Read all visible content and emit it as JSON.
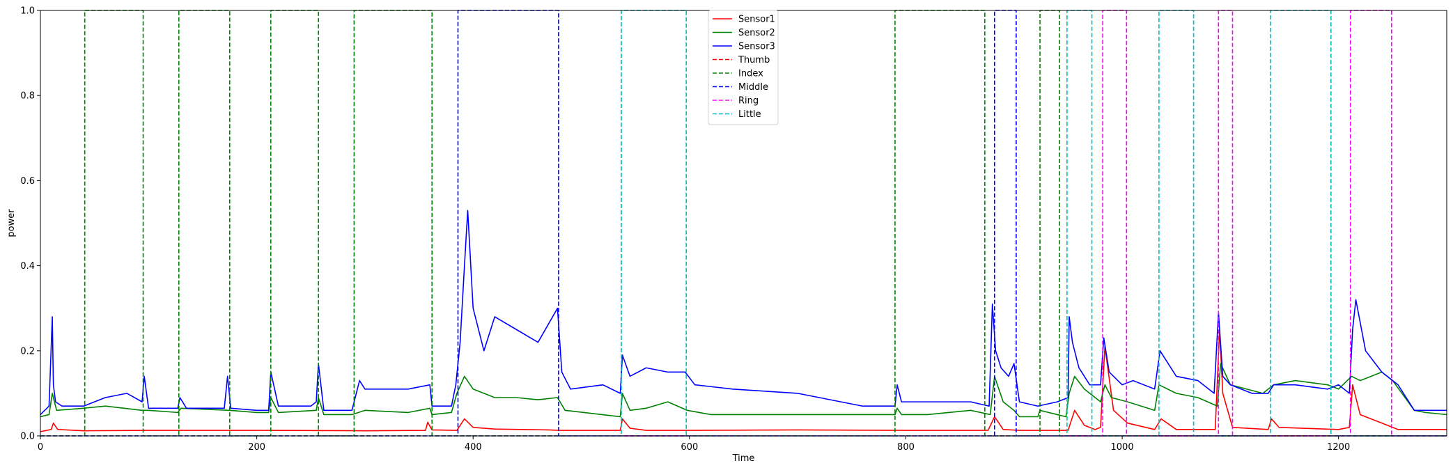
{
  "chart_data": {
    "type": "line",
    "title": "",
    "xlabel": "Time",
    "ylabel": "power",
    "xlim": [
      0,
      1300
    ],
    "ylim": [
      0,
      1.0
    ],
    "xticks": [
      0,
      200,
      400,
      600,
      800,
      1000,
      1200
    ],
    "xtick_labels": [
      "0",
      "200",
      "400",
      "600",
      "800",
      "1000",
      "1200"
    ],
    "yticks": [
      0.0,
      0.2,
      0.4,
      0.6,
      0.8,
      1.0
    ],
    "ytick_labels": [
      "0.0",
      "0.2",
      "0.4",
      "0.6",
      "0.8",
      "1.0"
    ],
    "grid": false,
    "legend_position": "top-center",
    "series": [
      {
        "name": "Sensor1",
        "style": "solid",
        "color": "#ff0000",
        "x": [
          0,
          10,
          12,
          16,
          40,
          100,
          200,
          300,
          356,
          358,
          362,
          385,
          392,
          400,
          420,
          470,
          480,
          536,
          538,
          545,
          560,
          600,
          700,
          800,
          876,
          882,
          890,
          905,
          940,
          950,
          956,
          965,
          975,
          980,
          984,
          992,
          1005,
          1030,
          1036,
          1050,
          1086,
          1090,
          1093,
          1102,
          1135,
          1138,
          1145,
          1200,
          1210,
          1213,
          1220,
          1240,
          1250,
          1255,
          1300
        ],
        "y": [
          0.01,
          0.015,
          0.03,
          0.015,
          0.012,
          0.013,
          0.013,
          0.012,
          0.013,
          0.032,
          0.014,
          0.013,
          0.04,
          0.02,
          0.016,
          0.014,
          0.013,
          0.013,
          0.04,
          0.018,
          0.013,
          0.013,
          0.014,
          0.013,
          0.013,
          0.045,
          0.015,
          0.013,
          0.013,
          0.013,
          0.06,
          0.025,
          0.015,
          0.02,
          0.21,
          0.06,
          0.03,
          0.015,
          0.04,
          0.015,
          0.015,
          0.25,
          0.1,
          0.02,
          0.015,
          0.04,
          0.02,
          0.015,
          0.02,
          0.12,
          0.05,
          0.03,
          0.02,
          0.015,
          0.015
        ]
      },
      {
        "name": "Sensor2",
        "style": "solid",
        "color": "#008000",
        "x": [
          0,
          8,
          11,
          15,
          40,
          60,
          94,
          100,
          127,
          130,
          175,
          200,
          211,
          213,
          220,
          255,
          257,
          262,
          288,
          300,
          340,
          360,
          362,
          380,
          385,
          392,
          400,
          420,
          440,
          460,
          478,
          485,
          536,
          538,
          545,
          560,
          580,
          598,
          620,
          700,
          790,
          792,
          796,
          820,
          860,
          878,
          882,
          890,
          900,
          905,
          922,
          924,
          940,
          948,
          951,
          956,
          965,
          980,
          984,
          990,
          1005,
          1030,
          1034,
          1050,
          1070,
          1088,
          1091,
          1100,
          1130,
          1140,
          1160,
          1190,
          1200,
          1212,
          1220,
          1240,
          1250,
          1270,
          1280,
          1300
        ],
        "y": [
          0.045,
          0.05,
          0.1,
          0.06,
          0.065,
          0.07,
          0.06,
          0.06,
          0.055,
          0.065,
          0.06,
          0.055,
          0.055,
          0.09,
          0.055,
          0.06,
          0.09,
          0.05,
          0.05,
          0.06,
          0.055,
          0.065,
          0.05,
          0.055,
          0.1,
          0.14,
          0.11,
          0.09,
          0.09,
          0.085,
          0.09,
          0.06,
          0.045,
          0.1,
          0.06,
          0.065,
          0.08,
          0.06,
          0.05,
          0.05,
          0.05,
          0.065,
          0.05,
          0.05,
          0.06,
          0.05,
          0.14,
          0.08,
          0.06,
          0.045,
          0.045,
          0.06,
          0.05,
          0.045,
          0.1,
          0.14,
          0.11,
          0.08,
          0.12,
          0.09,
          0.08,
          0.06,
          0.12,
          0.1,
          0.09,
          0.07,
          0.17,
          0.12,
          0.1,
          0.12,
          0.13,
          0.12,
          0.11,
          0.14,
          0.13,
          0.15,
          0.13,
          0.06,
          0.055,
          0.05
        ]
      },
      {
        "name": "Sensor3",
        "style": "solid",
        "color": "#0000ff",
        "x": [
          0,
          8,
          11,
          12,
          14,
          20,
          40,
          60,
          80,
          94,
          96,
          100,
          127,
          129,
          135,
          170,
          173,
          176,
          200,
          211,
          213,
          220,
          250,
          255,
          257,
          262,
          288,
          295,
          300,
          340,
          360,
          362,
          380,
          384,
          388,
          392,
          395,
          400,
          410,
          420,
          440,
          460,
          478,
          482,
          490,
          520,
          536,
          538,
          545,
          560,
          580,
          596,
          605,
          640,
          700,
          760,
          790,
          792,
          796,
          820,
          860,
          877,
          880,
          883,
          888,
          895,
          900,
          905,
          922,
          940,
          950,
          951,
          954,
          960,
          970,
          980,
          983,
          988,
          1000,
          1010,
          1030,
          1035,
          1050,
          1070,
          1085,
          1089,
          1093,
          1100,
          1120,
          1135,
          1140,
          1160,
          1190,
          1200,
          1210,
          1213,
          1216,
          1225,
          1240,
          1255,
          1270,
          1300
        ],
        "y": [
          0.05,
          0.07,
          0.28,
          0.12,
          0.08,
          0.07,
          0.07,
          0.09,
          0.1,
          0.08,
          0.14,
          0.065,
          0.065,
          0.09,
          0.065,
          0.065,
          0.14,
          0.065,
          0.06,
          0.06,
          0.15,
          0.07,
          0.07,
          0.08,
          0.17,
          0.06,
          0.06,
          0.13,
          0.11,
          0.11,
          0.12,
          0.07,
          0.07,
          0.12,
          0.22,
          0.4,
          0.53,
          0.3,
          0.2,
          0.28,
          0.25,
          0.22,
          0.3,
          0.15,
          0.11,
          0.12,
          0.1,
          0.19,
          0.14,
          0.16,
          0.15,
          0.15,
          0.12,
          0.11,
          0.1,
          0.07,
          0.07,
          0.12,
          0.08,
          0.08,
          0.08,
          0.07,
          0.31,
          0.2,
          0.16,
          0.14,
          0.17,
          0.08,
          0.07,
          0.08,
          0.09,
          0.28,
          0.22,
          0.16,
          0.12,
          0.12,
          0.23,
          0.15,
          0.12,
          0.13,
          0.11,
          0.2,
          0.14,
          0.13,
          0.1,
          0.29,
          0.14,
          0.12,
          0.1,
          0.1,
          0.12,
          0.12,
          0.11,
          0.12,
          0.1,
          0.25,
          0.32,
          0.2,
          0.15,
          0.12,
          0.06,
          0.06
        ]
      },
      {
        "name": "Thumb",
        "style": "dashed",
        "color": "#ff0000",
        "x": [
          0,
          1300
        ],
        "y": [
          0,
          0
        ]
      },
      {
        "name": "Index",
        "style": "dashed",
        "color": "#008000",
        "x": [
          0,
          41,
          41,
          95,
          95,
          128,
          128,
          175,
          175,
          213,
          213,
          257,
          257,
          290,
          290,
          362,
          362,
          790,
          790,
          873,
          873,
          924,
          924,
          942,
          942,
          1300
        ],
        "y": [
          0,
          0,
          1,
          1,
          0,
          0,
          1,
          1,
          0,
          0,
          1,
          1,
          0,
          0,
          1,
          1,
          0,
          0,
          1,
          1,
          0,
          0,
          1,
          1,
          0,
          0
        ]
      },
      {
        "name": "Middle",
        "style": "dashed",
        "color": "#0000ff",
        "x": [
          0,
          386,
          386,
          479,
          479,
          882,
          882,
          902,
          902,
          1300
        ],
        "y": [
          0,
          0,
          1,
          1,
          0,
          0,
          1,
          1,
          0,
          0
        ]
      },
      {
        "name": "Ring",
        "style": "dashed",
        "color": "#ff00ff",
        "x": [
          0,
          982,
          982,
          1004,
          1004,
          1089,
          1089,
          1102,
          1102,
          1211,
          1211,
          1249,
          1249,
          1300
        ],
        "y": [
          0,
          0,
          1,
          1,
          0,
          0,
          1,
          1,
          0,
          0,
          1,
          1,
          0,
          0
        ]
      },
      {
        "name": "Little",
        "style": "dashed",
        "color": "#00bfbf",
        "x": [
          0,
          537,
          537,
          597,
          597,
          949,
          949,
          972,
          972,
          1034,
          1034,
          1066,
          1066,
          1137,
          1137,
          1193,
          1193,
          1300
        ],
        "y": [
          0,
          0,
          1,
          1,
          0,
          0,
          1,
          1,
          0,
          0,
          1,
          1,
          0,
          0,
          1,
          1,
          0,
          0
        ]
      }
    ]
  }
}
